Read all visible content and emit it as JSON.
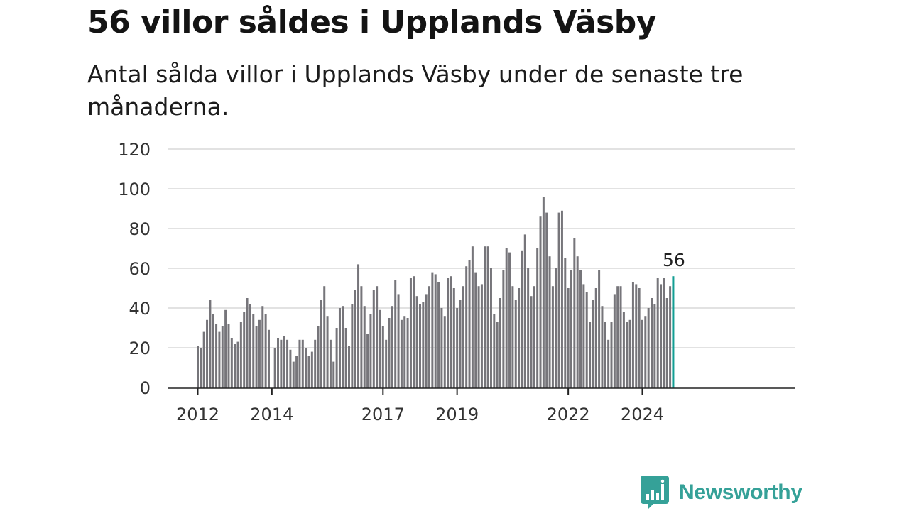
{
  "title": "56 villor såldes i Upplands Väsby",
  "subtitle": "Antal sålda villor i Upplands Väsby under de senaste tre månaderna.",
  "brand": {
    "name": "Newsworthy",
    "color": "#35a198"
  },
  "chart_data": {
    "type": "bar",
    "title": "56 villor såldes i Upplands Väsby",
    "xlabel": "",
    "ylabel": "",
    "ylim": [
      0,
      120
    ],
    "yticks": [
      0,
      20,
      40,
      60,
      80,
      100,
      120
    ],
    "xticks": [
      {
        "label": "2012",
        "index": 0
      },
      {
        "label": "2014",
        "index": 24
      },
      {
        "label": "2017",
        "index": 60
      },
      {
        "label": "2019",
        "index": 84
      },
      {
        "label": "2022",
        "index": 120
      },
      {
        "label": "2024",
        "index": 144
      }
    ],
    "grid": true,
    "bar_color": "#76757a",
    "highlight_color": "#139e93",
    "highlight_label": "56",
    "values": [
      21,
      20,
      28,
      34,
      44,
      37,
      32,
      28,
      31,
      39,
      32,
      25,
      22,
      23,
      33,
      38,
      45,
      42,
      37,
      31,
      34,
      41,
      37,
      29,
      null,
      20,
      25,
      24,
      26,
      24,
      19,
      13,
      16,
      24,
      24,
      20,
      16,
      18,
      24,
      31,
      44,
      51,
      36,
      24,
      13,
      30,
      40,
      41,
      30,
      21,
      42,
      49,
      62,
      51,
      41,
      27,
      37,
      49,
      51,
      39,
      31,
      24,
      35,
      41,
      54,
      47,
      34,
      36,
      35,
      55,
      56,
      46,
      42,
      43,
      47,
      51,
      58,
      57,
      53,
      40,
      36,
      55,
      56,
      50,
      40,
      44,
      51,
      61,
      64,
      71,
      58,
      51,
      52,
      71,
      71,
      60,
      37,
      33,
      45,
      59,
      70,
      68,
      51,
      44,
      50,
      69,
      77,
      60,
      46,
      51,
      70,
      86,
      96,
      88,
      66,
      51,
      60,
      88,
      89,
      65,
      50,
      59,
      75,
      66,
      59,
      52,
      48,
      33,
      44,
      50,
      59,
      41,
      33,
      24,
      33,
      47,
      51,
      51,
      38,
      33,
      34,
      53,
      52,
      50,
      34,
      36,
      40,
      45,
      42,
      55,
      52,
      55,
      45,
      51,
      56
    ]
  }
}
